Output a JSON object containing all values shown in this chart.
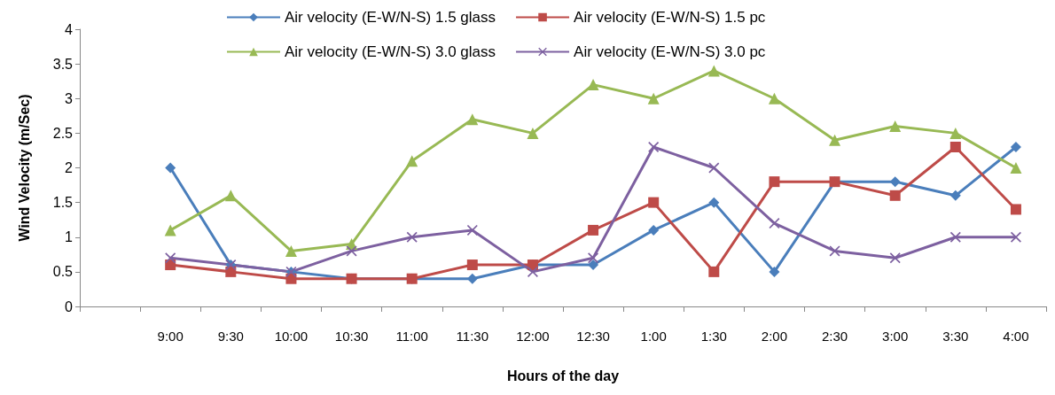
{
  "chart_data": {
    "type": "line",
    "xlabel": "Hours of the day",
    "ylabel": "Wind Velocity (m/Sec)",
    "categories": [
      null,
      "9:00",
      "9:30",
      "10:00",
      "10:30",
      "11:00",
      "11:30",
      "12:00",
      "12:30",
      "1:00",
      "1:30",
      "2:00",
      "2:30",
      "3:00",
      "3:30",
      "4:00"
    ],
    "ylim": [
      0,
      4
    ],
    "yticks": [
      0,
      0.5,
      1,
      1.5,
      2,
      2.5,
      3,
      3.5,
      4
    ],
    "grid": false,
    "legend": "top",
    "series": [
      {
        "name": "Air velocity (E-W/N-S) 1.5 glass",
        "color": "#4a7ebb",
        "marker": "diamond",
        "values": [
          null,
          2.0,
          0.6,
          0.5,
          0.4,
          0.4,
          0.4,
          0.6,
          0.6,
          1.1,
          1.5,
          0.5,
          1.8,
          1.8,
          1.6,
          2.3
        ]
      },
      {
        "name": "Air velocity (E-W/N-S) 1.5 pc",
        "color": "#be4b48",
        "marker": "square",
        "values": [
          null,
          0.6,
          0.5,
          0.4,
          0.4,
          0.4,
          0.6,
          0.6,
          1.1,
          1.5,
          0.5,
          1.8,
          1.8,
          1.6,
          2.3,
          1.4
        ]
      },
      {
        "name": "Air velocity (E-W/N-S) 3.0 glass",
        "color": "#98b954",
        "marker": "triangle",
        "values": [
          null,
          1.1,
          1.6,
          0.8,
          0.9,
          2.1,
          2.7,
          2.5,
          3.2,
          3.0,
          3.4,
          3.0,
          2.4,
          2.6,
          2.5,
          2.0
        ]
      },
      {
        "name": "Air velocity (E-W/N-S) 3.0 pc",
        "color": "#7d60a0",
        "marker": "cross",
        "values": [
          null,
          0.7,
          0.6,
          0.5,
          0.8,
          1.0,
          1.1,
          0.5,
          0.7,
          2.3,
          2.0,
          1.2,
          0.8,
          0.7,
          1.0,
          1.0
        ]
      }
    ]
  }
}
